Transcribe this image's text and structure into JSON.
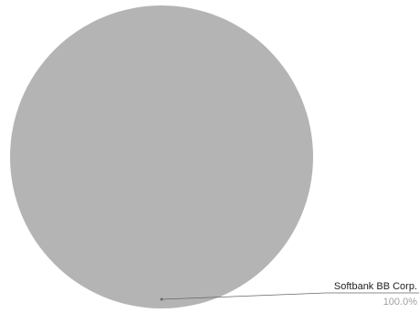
{
  "chart_data": {
    "type": "pie",
    "categories": [
      "Softbank BB Corp."
    ],
    "values": [
      100.0
    ],
    "percent_labels": [
      "100.0%"
    ],
    "colors": [
      "#b4b4b4"
    ],
    "title": "",
    "legend": "none"
  },
  "colors": {
    "slice": "#b4b4b4",
    "leader_line": "#666666",
    "label_text": "#222222",
    "percent_text": "#a0a0a0"
  }
}
